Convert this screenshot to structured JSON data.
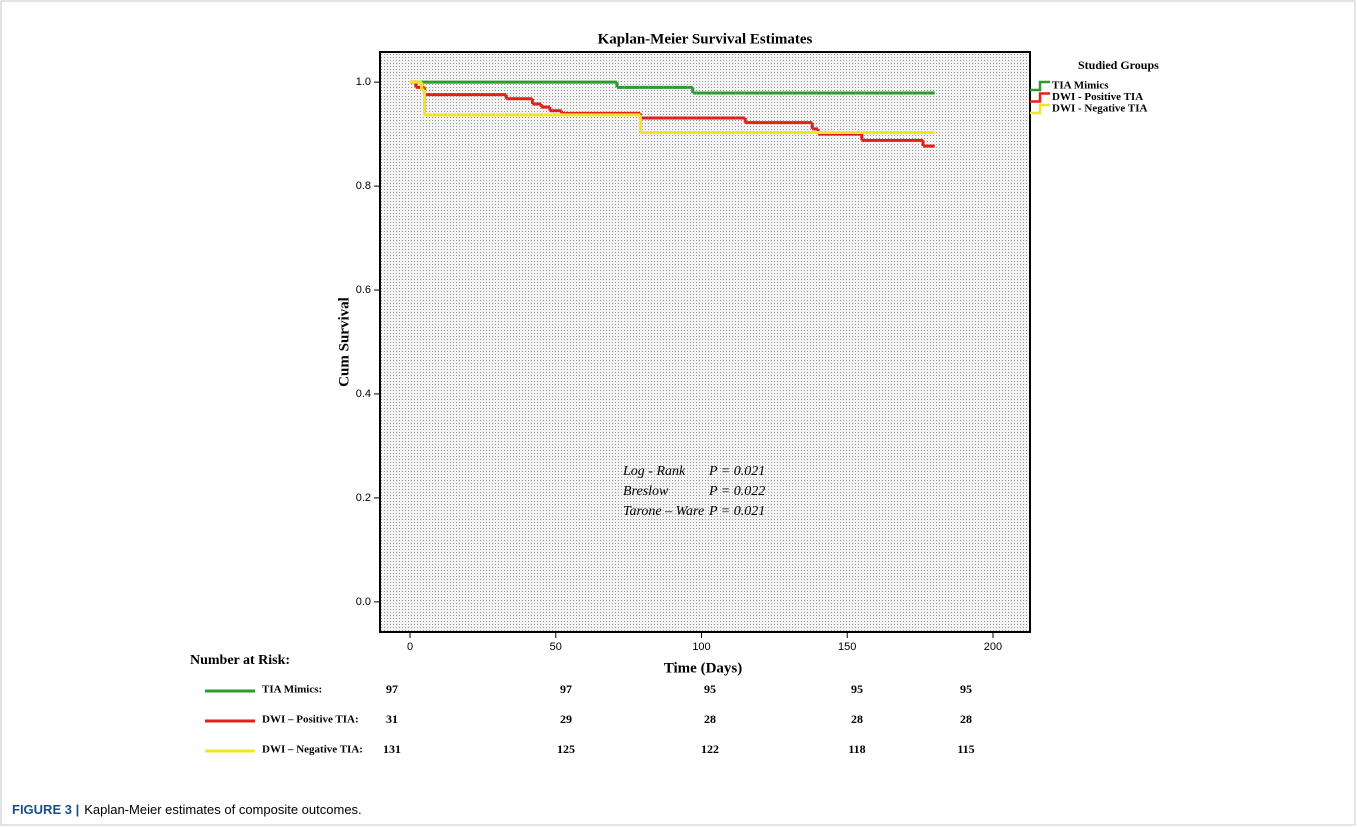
{
  "chart_data": {
    "type": "step",
    "title": "Kaplan-Meier Survival Estimates",
    "x_label": "Time (Days)",
    "y_label": "Cum Survival",
    "xlim": [
      -10.3,
      212.7
    ],
    "ylim": [
      -0.058,
      1.058
    ],
    "xticks": [
      0,
      50,
      100,
      150,
      200
    ],
    "yticks": [
      {
        "value": 0,
        "label": "0.0"
      },
      0.2,
      0.4,
      0.6,
      0.8,
      {
        "value": 1,
        "label": "1.0"
      }
    ],
    "legend_title": "Studied Groups",
    "legend": "outside-top-right",
    "series": [
      {
        "name": "TIA Mimics",
        "color": "#2f9a2f",
        "x": [
          0,
          71,
          97,
          180
        ],
        "values": [
          1,
          0.99,
          0.979,
          0.979
        ]
      },
      {
        "name": "DWI - Positive TIA",
        "color": "#e0201b",
        "x": [
          0,
          2,
          5,
          33,
          42,
          45,
          48,
          52,
          79,
          115,
          138,
          140,
          155,
          176,
          180
        ],
        "values": [
          1,
          0.99,
          0.976,
          0.968,
          0.958,
          0.952,
          0.945,
          0.94,
          0.931,
          0.922,
          0.91,
          0.9,
          0.888,
          0.877,
          0.877
        ]
      },
      {
        "name": "DWI - Negative TIA",
        "color": "#f3e526",
        "x": [
          0,
          4,
          5,
          79,
          180
        ],
        "values": [
          1,
          0.985,
          0.937,
          0.903,
          0.903
        ]
      }
    ],
    "annotations": [
      {
        "test": "Log - Rank",
        "p": "P = 0.021"
      },
      {
        "test": "Breslow",
        "p": "P = 0.022"
      },
      {
        "test": "Tarone – Ware",
        "p": "P = 0.021"
      }
    ],
    "risk_table": {
      "title": "Number at Risk:",
      "rows": [
        {
          "name": "TIA Mimics:",
          "color": "#2f9a2f",
          "values": [
            97,
            97,
            95,
            95,
            95
          ]
        },
        {
          "name": "DWI – Positive TIA:",
          "color": "#e0201b",
          "values": [
            31,
            29,
            28,
            28,
            28
          ]
        },
        {
          "name": "DWI – Negative TIA:",
          "color": "#f3e526",
          "values": [
            131,
            125,
            122,
            118,
            115
          ]
        }
      ]
    }
  },
  "caption": {
    "label": "FIGURE 3 |",
    "text": "Kaplan-Meier estimates of composite outcomes."
  }
}
